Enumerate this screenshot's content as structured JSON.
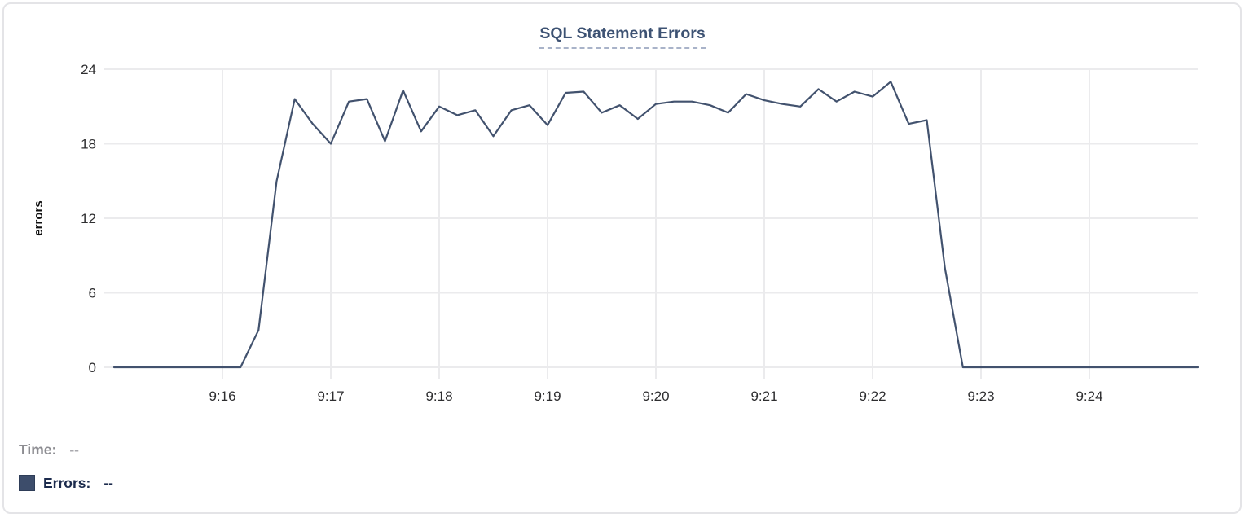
{
  "chart_data": {
    "type": "line",
    "title": "SQL Statement Errors",
    "xlabel": "",
    "ylabel": "errors",
    "ylim": [
      0,
      24
    ],
    "y_ticks": [
      0,
      6,
      12,
      18,
      24
    ],
    "x_ticks": [
      "9:16",
      "9:17",
      "9:18",
      "9:19",
      "9:20",
      "9:21",
      "9:22",
      "9:23",
      "9:24"
    ],
    "x_range": [
      "9:15:00",
      "9:25:00"
    ],
    "grid": true,
    "legend_position": "bottom-left",
    "series": [
      {
        "name": "Errors",
        "start_time": "9:15:00",
        "interval_seconds": 10,
        "values": [
          0,
          0,
          0,
          0,
          0,
          0,
          0,
          0,
          3,
          15,
          21.6,
          19.6,
          18,
          21.4,
          21.6,
          18.2,
          22.3,
          19,
          21,
          20.3,
          20.7,
          18.6,
          20.7,
          21.1,
          19.5,
          22.1,
          22.2,
          20.5,
          21.1,
          20,
          21.2,
          21.4,
          21.4,
          21.1,
          20.5,
          22,
          21.5,
          21.2,
          21,
          22.4,
          21.4,
          22.2,
          21.8,
          23,
          19.6,
          19.9,
          8,
          0,
          0,
          0,
          0,
          0,
          0,
          0,
          0,
          0,
          0,
          0,
          0,
          0,
          0
        ]
      }
    ]
  },
  "legend": {
    "time_label": "Time:",
    "time_value": "--",
    "errors_label": "Errors:",
    "errors_value": "--"
  },
  "colors": {
    "line": "#42526e",
    "swatch": "#3d4d6b",
    "swatch_border": "#2e3d58",
    "title": "#3d5273",
    "title_underline": "#a9b3c9",
    "grid": "#ebebed",
    "tick_text": "#2e2e30",
    "y_axis_title": "#111111",
    "time_label": "#8d8d92",
    "time_value": "#a9a9ae",
    "errors_text": "#1c2b4d",
    "card_border": "#e4e4e7"
  }
}
